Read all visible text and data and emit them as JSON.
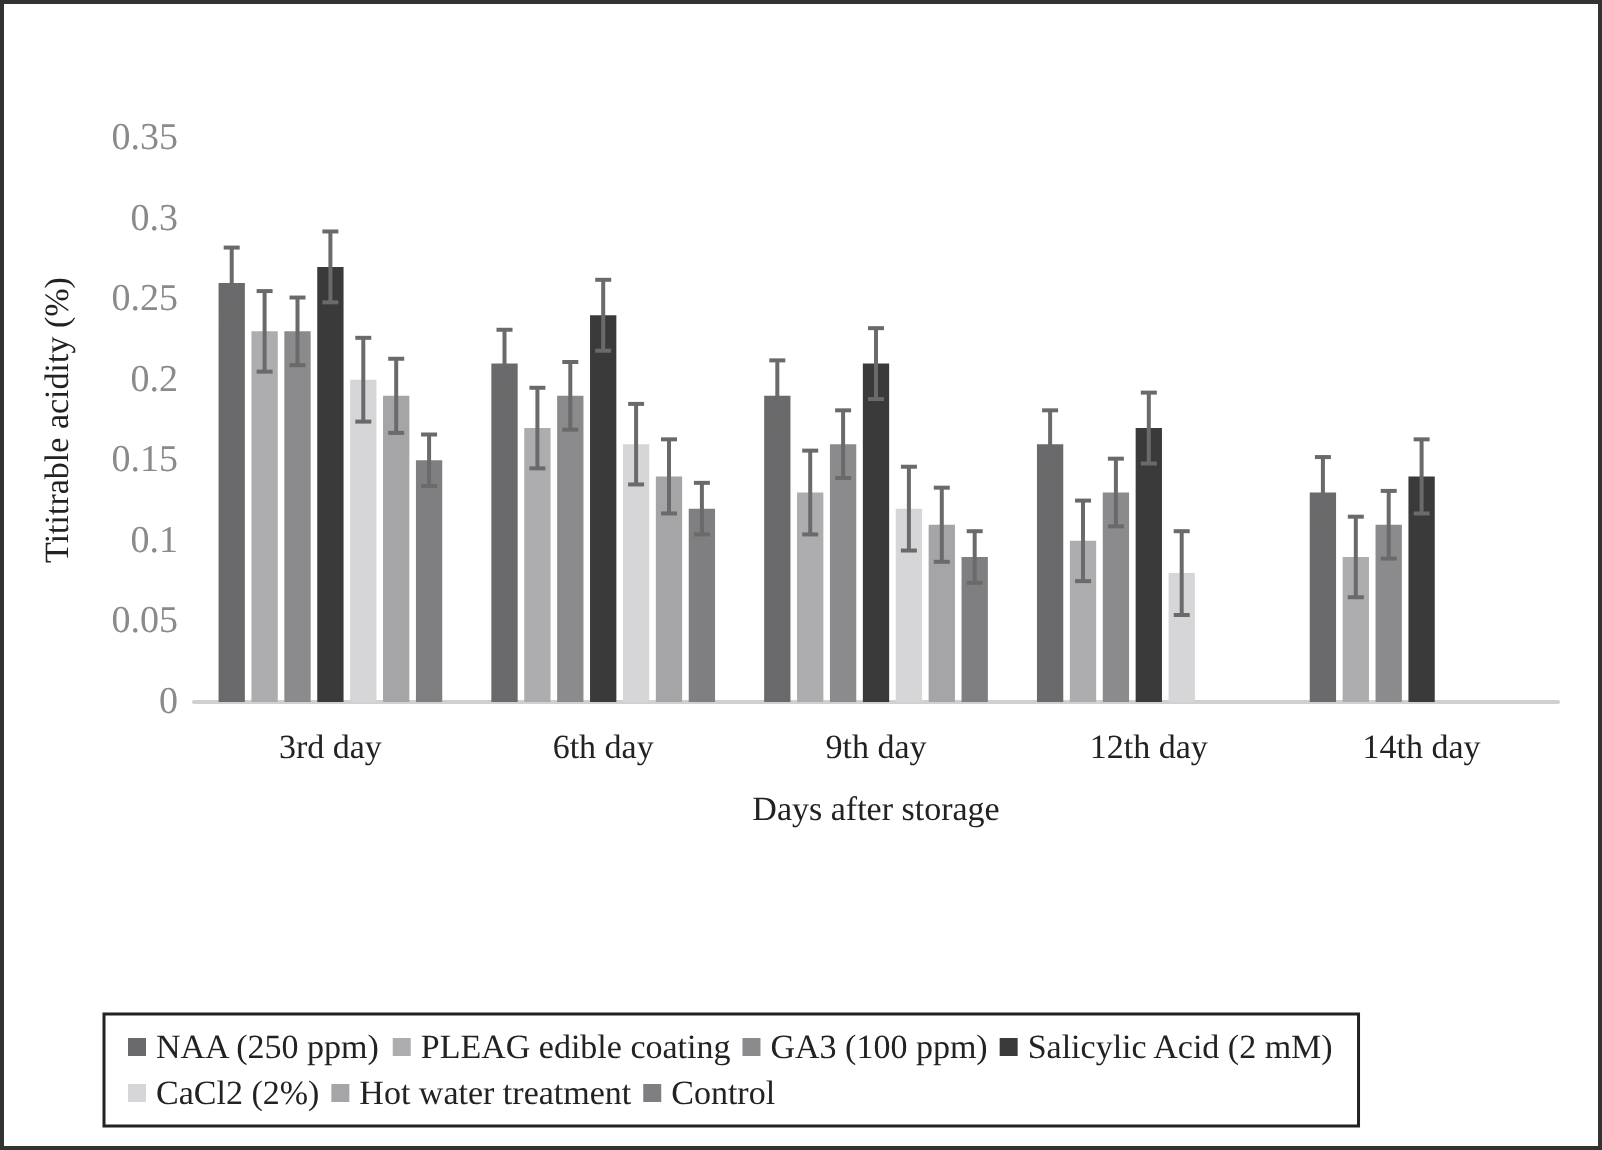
{
  "chart_data": {
    "type": "bar",
    "xlabel": "Days after storage",
    "ylabel": "Tititrable acidity (%)",
    "categories": [
      "3rd day",
      "6th day",
      "9th day",
      "12th day",
      "14th day"
    ],
    "ylim": [
      0,
      0.35
    ],
    "yticks": [
      0,
      0.05,
      0.1,
      0.15,
      0.2,
      0.25,
      0.3,
      0.35
    ],
    "grid": false,
    "legend": "bottom",
    "series": [
      {
        "name": "NAA (250 ppm)",
        "color": "#6a6a6c",
        "values": [
          0.26,
          0.21,
          0.19,
          0.16,
          0.13
        ],
        "errors": [
          0.022,
          0.021,
          0.022,
          0.021,
          0.022
        ]
      },
      {
        "name": "PLEAG edible coating",
        "color": "#adadaf",
        "values": [
          0.23,
          0.17,
          0.13,
          0.1,
          0.09
        ],
        "errors": [
          0.025,
          0.025,
          0.026,
          0.025,
          0.025
        ]
      },
      {
        "name": "GA3 (100 ppm)",
        "color": "#8b8b8d",
        "values": [
          0.23,
          0.19,
          0.16,
          0.13,
          0.11
        ],
        "errors": [
          0.021,
          0.021,
          0.021,
          0.021,
          0.021
        ]
      },
      {
        "name": "Salicylic Acid (2 mM)",
        "color": "#3a3a3a",
        "values": [
          0.27,
          0.24,
          0.21,
          0.17,
          0.14
        ],
        "errors": [
          0.022,
          0.022,
          0.022,
          0.022,
          0.023
        ]
      },
      {
        "name": "CaCl2 (2%)",
        "color": "#d6d6d8",
        "values": [
          0.2,
          0.16,
          0.12,
          0.08,
          null
        ],
        "errors": [
          0.026,
          0.025,
          0.026,
          0.026,
          null
        ]
      },
      {
        "name": "Hot water treatment",
        "color": "#a5a5a7",
        "values": [
          0.19,
          0.14,
          0.11,
          null,
          null
        ],
        "errors": [
          0.023,
          0.023,
          0.023,
          null,
          null
        ]
      },
      {
        "name": "Control",
        "color": "#7f7f81",
        "values": [
          0.15,
          0.12,
          0.09,
          null,
          null
        ],
        "errors": [
          0.016,
          0.016,
          0.016,
          null,
          null
        ]
      }
    ]
  }
}
